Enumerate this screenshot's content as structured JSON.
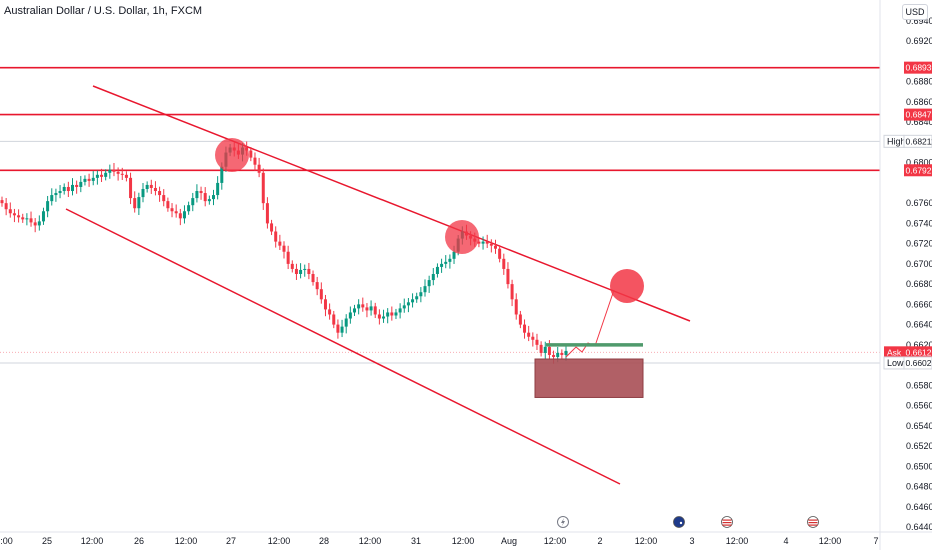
{
  "header": {
    "symbol_title": "Australian Dollar / U.S. Dollar, 1h, FXCM"
  },
  "price_axis": {
    "currency": "USD",
    "ticks": [
      "0.69400",
      "0.69200",
      "0.68800",
      "0.68600",
      "0.68400",
      "0.68000",
      "0.67600",
      "0.67400",
      "0.67200",
      "0.67000",
      "0.66800",
      "0.66600",
      "0.66400",
      "0.66200",
      "0.65800",
      "0.65600",
      "0.65400",
      "0.65200",
      "0.65000",
      "0.64800",
      "0.64600",
      "0.64400"
    ],
    "levels": [
      {
        "label": "",
        "price": "0.68939",
        "color": "#f23645"
      },
      {
        "label": "",
        "price": "0.68475",
        "color": "#f23645"
      },
      {
        "label": "High",
        "price": "0.68211",
        "color": "#ffffff"
      },
      {
        "label": "",
        "price": "0.67925",
        "color": "#f23645"
      },
      {
        "label": "Ask",
        "price": "0.66126",
        "color": "#f23645"
      },
      {
        "label": "Low",
        "price": "0.66021",
        "color": "#ffffff"
      }
    ]
  },
  "time_axis": {
    "labels": [
      "2:00",
      "25",
      "12:00",
      "26",
      "12:00",
      "27",
      "12:00",
      "28",
      "12:00",
      "31",
      "12:00",
      "Aug",
      "12:00",
      "2",
      "12:00",
      "3",
      "12:00",
      "4",
      "12:00",
      "7"
    ]
  },
  "colors": {
    "up": "#089981",
    "down": "#f23645",
    "line": "#e8172e",
    "zone": "#a84f55",
    "target": "#4f9a6c"
  },
  "event_icons": [
    "lightning-icon",
    "au-flag-icon",
    "us-flag-icon",
    "us-flag-icon"
  ],
  "chart_data": {
    "type": "candlestick",
    "title": "Australian Dollar / U.S. Dollar, 1h, FXCM",
    "xlabel": "",
    "ylabel": "",
    "ylim": [
      0.644,
      0.695
    ],
    "horizontal_levels": [
      0.68939,
      0.68475,
      0.67925
    ],
    "high": 0.68211,
    "low": 0.66021,
    "ask": 0.66126,
    "candles_close_path": [
      0.676,
      0.6754,
      0.675,
      0.6748,
      0.6746,
      0.6744,
      0.6745,
      0.6741,
      0.6738,
      0.6742,
      0.6752,
      0.6762,
      0.6768,
      0.677,
      0.6772,
      0.6776,
      0.6772,
      0.6778,
      0.6776,
      0.6781,
      0.6784,
      0.6782,
      0.6785,
      0.6788,
      0.6786,
      0.679,
      0.6793,
      0.6791,
      0.6789,
      0.6788,
      0.6785,
      0.6765,
      0.6755,
      0.6766,
      0.6774,
      0.6778,
      0.6775,
      0.6772,
      0.6768,
      0.6762,
      0.6755,
      0.6752,
      0.675,
      0.6745,
      0.6752,
      0.6758,
      0.6765,
      0.6772,
      0.677,
      0.6762,
      0.6764,
      0.6768,
      0.678,
      0.6796,
      0.681,
      0.6815,
      0.6812,
      0.6808,
      0.6815,
      0.6812,
      0.6805,
      0.6798,
      0.679,
      0.676,
      0.674,
      0.6732,
      0.6722,
      0.6718,
      0.6712,
      0.67,
      0.6695,
      0.669,
      0.6694,
      0.6695,
      0.669,
      0.6682,
      0.6675,
      0.6665,
      0.6655,
      0.665,
      0.664,
      0.6632,
      0.6638,
      0.6646,
      0.6652,
      0.6656,
      0.666,
      0.6657,
      0.6654,
      0.6658,
      0.665,
      0.6646,
      0.6648,
      0.6652,
      0.6649,
      0.6652,
      0.6656,
      0.6659,
      0.6662,
      0.6665,
      0.6668,
      0.6672,
      0.6678,
      0.6684,
      0.669,
      0.6697,
      0.67,
      0.6702,
      0.6705,
      0.6712,
      0.6725,
      0.6732,
      0.6728,
      0.6725,
      0.6722,
      0.672,
      0.6722,
      0.672,
      0.6718,
      0.6715,
      0.6705,
      0.6695,
      0.668,
      0.6665,
      0.665,
      0.664,
      0.6632,
      0.6628,
      0.6625,
      0.662,
      0.6612,
      0.6618,
      0.661,
      0.6608,
      0.6612,
      0.661,
      0.6614
    ],
    "zones": {
      "resistance_circles": [
        "27",
        "31",
        "projection"
      ],
      "target_line": 0.662,
      "demand_zone": [
        0.6568,
        0.6606
      ]
    }
  }
}
